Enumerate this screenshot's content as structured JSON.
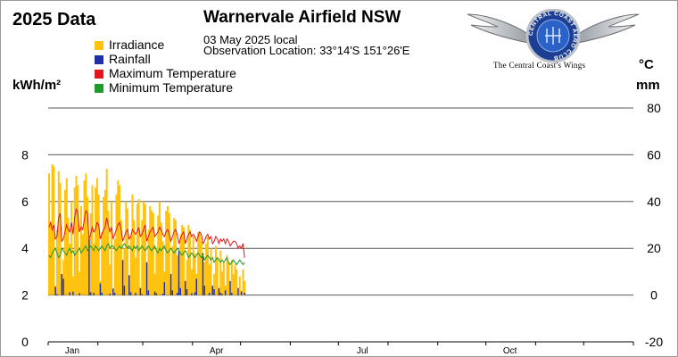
{
  "header": {
    "year_title": "2025 Data",
    "station": "Warnervale Airfield NSW",
    "date": "03 May 2025 local",
    "location": "Observation Location: 33°14'S 151°26'E"
  },
  "logo": {
    "ring_text": "CENTRAL COAST AERO CLUB",
    "tagline": "The Central Coast's Wings"
  },
  "axes": {
    "left_unit": "kWh/m²",
    "right_unit_1": "°C",
    "right_unit_2": "mm"
  },
  "colors": {
    "irradiance": "#ffc20e",
    "rainfall": "#1f2fa8",
    "max_temp": "#e4141b",
    "min_temp": "#1d9a2a",
    "grid": "#5a5a5a"
  },
  "chart_data": {
    "type": "bar",
    "title": "Warnervale Airfield NSW",
    "legend": [
      "Irradiance",
      "Rainfall",
      "Maximum Temperature",
      "Minimum Temperature"
    ],
    "legend_position": "top-left",
    "x_range": [
      "2025-01-01",
      "2025-12-31"
    ],
    "x_ticks": [
      "Jan",
      "Apr",
      "Jul",
      "Oct"
    ],
    "left_axis": {
      "label": "kWh/m²",
      "ylim": [
        0,
        8
      ],
      "ticks": [
        "0",
        "2",
        "4",
        "6",
        "8"
      ]
    },
    "right_axis": {
      "label": "°C / mm",
      "ylim": [
        -20,
        80
      ],
      "ticks": [
        "-20",
        "0",
        "20",
        "40",
        "60",
        "80"
      ]
    },
    "grid": true,
    "series": [
      {
        "name": "Irradiance",
        "type": "bar",
        "axis": "left",
        "values": [
          7.2,
          5.0,
          7.6,
          7.5,
          2.4,
          4.8,
          7.3,
          6.8,
          1.9,
          3.5,
          6.5,
          7.0,
          5.3,
          4.2,
          6.0,
          2.8,
          6.6,
          7.1,
          6.7,
          3.0,
          5.8,
          4.6,
          6.9,
          7.2,
          6.2,
          1.4,
          5.5,
          6.7,
          4.2,
          6.6,
          7.0,
          6.3,
          2.6,
          4.7,
          6.2,
          6.5,
          7.4,
          5.6,
          3.3,
          6.0,
          2.1,
          4.4,
          6.3,
          6.9,
          6.7,
          5.2,
          1.7,
          4.0,
          6.0,
          5.7,
          2.4,
          4.5,
          6.3,
          5.2,
          3.6,
          5.9,
          6.1,
          2.3,
          5.2,
          6.0,
          5.9,
          1.6,
          4.8,
          5.8,
          5.6,
          5.5,
          2.9,
          4.0,
          5.4,
          6.0,
          5.1,
          4.3,
          3.0,
          5.6,
          5.8,
          5.5,
          2.2,
          4.1,
          5.3,
          5.2,
          3.7,
          2.6,
          4.6,
          5.0,
          4.9,
          1.8,
          3.5,
          5.0,
          4.8,
          3.1,
          4.5,
          3.8,
          2.9,
          4.7,
          4.6,
          4.3,
          1.6,
          3.4,
          4.2,
          4.5,
          3.3,
          4.0,
          2.3,
          2.9,
          4.1,
          3.6,
          2.2,
          3.9,
          3.0,
          3.4,
          2.4,
          3.7,
          3.4,
          1.4,
          3.5,
          2.9,
          3.3,
          3.1,
          2.0,
          2.8,
          2.2,
          3.1,
          2.6
        ]
      },
      {
        "name": "Rainfall",
        "type": "bar",
        "axis": "right",
        "values": [
          0,
          0,
          0,
          0,
          3.5,
          0.4,
          0,
          0,
          9.0,
          7.0,
          0,
          0,
          0,
          1.2,
          0,
          1.5,
          0,
          0,
          0,
          0.8,
          0,
          0,
          0,
          0,
          0,
          24.0,
          1.2,
          0,
          1.0,
          0,
          0,
          0,
          5.0,
          1.0,
          0,
          0,
          0,
          0,
          0.6,
          0,
          2.8,
          1.0,
          0,
          0,
          0,
          0,
          15.0,
          4.0,
          0,
          0,
          8.5,
          1.2,
          0,
          0,
          1.0,
          0,
          0,
          3.0,
          0.4,
          0,
          0,
          14.0,
          2.0,
          0,
          0,
          0,
          1.5,
          0.8,
          0,
          0,
          0,
          0.6,
          5.5,
          0,
          0,
          0,
          9.0,
          2.0,
          0,
          0,
          1.0,
          19.0,
          3.0,
          0,
          0,
          6.0,
          2.5,
          0,
          0,
          0.8,
          0,
          1.2,
          7.0,
          0,
          0,
          0,
          18.0,
          4.0,
          0,
          0,
          1.0,
          0,
          4.0,
          2.5,
          0,
          0,
          3.0,
          1.0,
          0.5,
          0,
          2.0,
          0,
          0,
          6.0,
          1.0,
          0,
          0,
          0,
          3.0,
          0,
          1.5,
          0,
          1.0
        ]
      },
      {
        "name": "Maximum Temperature",
        "type": "line",
        "axis": "right",
        "values": [
          29,
          31,
          28,
          30,
          24,
          25,
          33,
          35,
          23,
          24,
          27,
          30,
          28,
          27,
          31,
          26,
          33,
          37,
          35,
          27,
          29,
          28,
          32,
          36,
          35,
          24,
          26,
          29,
          27,
          28,
          31,
          30,
          24,
          26,
          28,
          29,
          33,
          30,
          27,
          29,
          24,
          26,
          28,
          30,
          31,
          28,
          23,
          25,
          27,
          28,
          24,
          25,
          28,
          27,
          26,
          27,
          29,
          25,
          26,
          28,
          30,
          23,
          25,
          27,
          28,
          29,
          25,
          26,
          27,
          29,
          28,
          26,
          25,
          27,
          28,
          26,
          23,
          25,
          27,
          28,
          26,
          22,
          24,
          26,
          27,
          22,
          24,
          26,
          27,
          25,
          26,
          25,
          23,
          25,
          27,
          26,
          22,
          23,
          25,
          26,
          24,
          25,
          22,
          23,
          25,
          24,
          22,
          24,
          23,
          24,
          22,
          24,
          23,
          21,
          22,
          23,
          23,
          22,
          20,
          21,
          20,
          22,
          16
        ]
      },
      {
        "name": "Minimum Temperature",
        "type": "line",
        "axis": "right",
        "values": [
          17,
          16,
          18,
          19,
          20,
          18,
          16,
          17,
          20,
          19,
          18,
          17,
          19,
          20,
          18,
          19,
          17,
          18,
          19,
          20,
          18,
          19,
          20,
          21,
          19,
          20,
          21,
          20,
          19,
          21,
          20,
          19,
          20,
          21,
          20,
          19,
          21,
          22,
          20,
          21,
          21,
          20,
          19,
          20,
          21,
          20,
          21,
          22,
          21,
          20,
          21,
          20,
          19,
          21,
          20,
          21,
          19,
          20,
          21,
          20,
          19,
          20,
          21,
          20,
          19,
          20,
          21,
          19,
          18,
          20,
          19,
          20,
          21,
          19,
          18,
          19,
          20,
          19,
          18,
          19,
          20,
          19,
          18,
          17,
          18,
          19,
          18,
          16,
          17,
          18,
          17,
          16,
          17,
          18,
          17,
          16,
          17,
          15,
          16,
          17,
          16,
          15,
          16,
          14,
          15,
          16,
          15,
          14,
          15,
          14,
          15,
          16,
          14,
          13,
          14,
          15,
          14,
          13,
          14,
          15,
          14,
          13,
          14
        ]
      }
    ]
  }
}
